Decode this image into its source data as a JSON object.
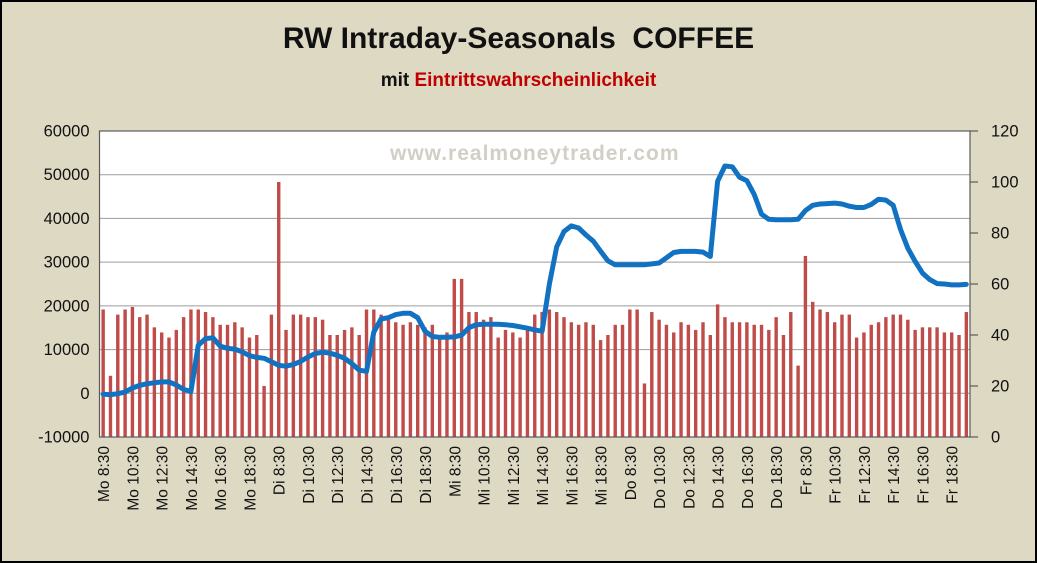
{
  "header": {
    "title": "RW Intraday-Seasonals  COFFEE",
    "subtitle_prefix": "mit ",
    "subtitle_highlight": "Eintrittswahrscheinlichkeit"
  },
  "watermark": "www.realmoneytrader.com",
  "colors": {
    "background": "#ded9c3",
    "plot_background": "#ffffff",
    "grid": "#9b9b9b",
    "plot_border": "#595959",
    "bar": "#bf4c48",
    "line": "#1272c2",
    "subtitle_red": "#c00000",
    "watermark": "#d2cfc6",
    "axis_text": "#111111"
  },
  "chart_data": {
    "type": "bar",
    "combo": "bars (probability %, right axis) + line (seasonal value, left axis)",
    "title": "RW Intraday-Seasonals  COFFEE",
    "subtitle": "mit Eintrittswahrscheinlichkeit",
    "grid": true,
    "legend": "none",
    "x_tick_labels": [
      "Mo 8:30",
      "Mo 10:30",
      "Mo 12:30",
      "Mo 14:30",
      "Mo 16:30",
      "Mo 18:30",
      "Di 8:30",
      "Di 10:30",
      "Di 12:30",
      "Di 14:30",
      "Di 16:30",
      "Di 18:30",
      "Mi 8:30",
      "Mi 10:30",
      "Mi 12:30",
      "Mi 14:30",
      "Mi 16:30",
      "Mi 18:30",
      "Do 8:30",
      "Do 10:30",
      "Do 12:30",
      "Do 14:30",
      "Do 16:30",
      "Do 18:30",
      "Fr 8:30",
      "Fr 10:30",
      "Fr 12:30",
      "Fr 14:30",
      "Fr 16:30",
      "Fr 18:30"
    ],
    "bars_per_label": 4,
    "axes": {
      "left": {
        "min": -10000,
        "max": 60000,
        "ticks": [
          60000,
          50000,
          40000,
          30000,
          20000,
          10000,
          0,
          -10000
        ]
      },
      "right": {
        "min": 0,
        "max": 120,
        "ticks": [
          120,
          100,
          80,
          60,
          40,
          20,
          0
        ]
      }
    },
    "series": [
      {
        "id": "probability_bars",
        "type": "bar",
        "axis": "right",
        "values": [
          50,
          24,
          48,
          50,
          51,
          47,
          48,
          43,
          41,
          39,
          42,
          47,
          50,
          50,
          49,
          47,
          44,
          44,
          45,
          43,
          39,
          40,
          20,
          48,
          100,
          42,
          48,
          48,
          47,
          47,
          46,
          40,
          40,
          42,
          43,
          40,
          50,
          50,
          48,
          46,
          45,
          44,
          45,
          44,
          43,
          44,
          39,
          41,
          62,
          62,
          49,
          49,
          46,
          47,
          39,
          42,
          41,
          39,
          42,
          48,
          49,
          50,
          49,
          47,
          45,
          44,
          45,
          44,
          38,
          40,
          44,
          44,
          50,
          50,
          21,
          49,
          46,
          44,
          41,
          45,
          44,
          42,
          45,
          40,
          52,
          47,
          45,
          45,
          45,
          44,
          44,
          42,
          47,
          40,
          49,
          28,
          71,
          53,
          50,
          49,
          45,
          48,
          48,
          39,
          41,
          44,
          45,
          47,
          48,
          48,
          46,
          42,
          43,
          43,
          43,
          41,
          41,
          40,
          49
        ]
      },
      {
        "id": "seasonal_line",
        "type": "line",
        "axis": "left",
        "values": [
          -200,
          -300,
          -100,
          300,
          1200,
          1800,
          2200,
          2400,
          2600,
          2600,
          1900,
          900,
          400,
          11000,
          12500,
          12700,
          10800,
          10300,
          10100,
          9500,
          8600,
          8200,
          8000,
          7200,
          6400,
          6200,
          6600,
          7300,
          8300,
          9100,
          9400,
          9200,
          8700,
          8000,
          6800,
          5300,
          5000,
          14000,
          17000,
          17300,
          18000,
          18300,
          18300,
          17300,
          14200,
          13000,
          12800,
          12800,
          12900,
          13300,
          15000,
          15700,
          15800,
          15800,
          15800,
          15700,
          15500,
          15200,
          14900,
          14500,
          14200,
          25000,
          33500,
          37000,
          38300,
          37800,
          36200,
          34800,
          32500,
          30300,
          29400,
          29400,
          29400,
          29400,
          29400,
          29600,
          29800,
          31000,
          32200,
          32450,
          32450,
          32450,
          32300,
          31300,
          48500,
          52000,
          51800,
          49400,
          48600,
          45500,
          41000,
          39800,
          39700,
          39700,
          39700,
          39800,
          41800,
          43000,
          43300,
          43400,
          43500,
          43300,
          42800,
          42500,
          42500,
          43200,
          44400,
          44200,
          43000,
          37500,
          33200,
          30200,
          27500,
          26000,
          25100,
          25000,
          24800,
          24800,
          24900
        ]
      }
    ]
  }
}
